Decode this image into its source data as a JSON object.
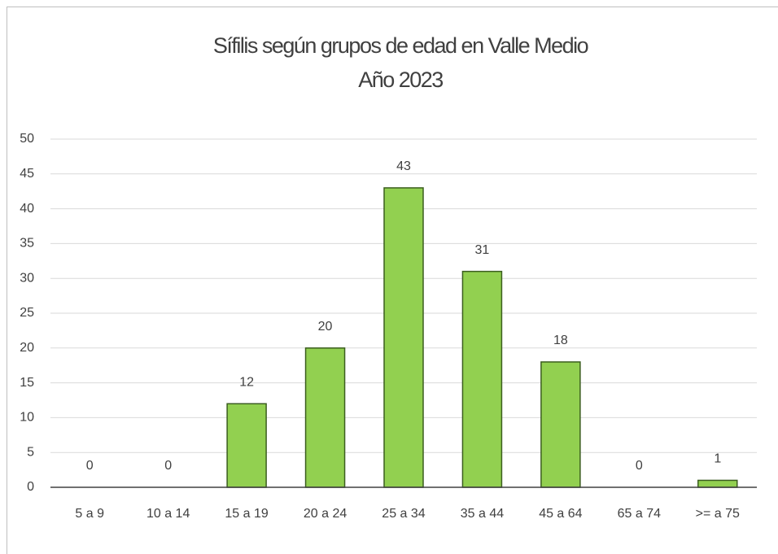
{
  "chart_data": {
    "type": "bar",
    "title": "Sífilis según grupos de edad en Valle Medio",
    "subtitle": "Año 2023",
    "categories": [
      "5 a 9",
      "10 a 14",
      "15 a 19",
      "20 a 24",
      "25 a 34",
      "35 a 44",
      "45 a 64",
      "65 a 74",
      ">= a 75"
    ],
    "values": [
      0,
      0,
      12,
      20,
      43,
      31,
      18,
      0,
      1
    ],
    "color": "#92d050",
    "ylim": [
      0,
      50
    ],
    "yticks": [
      0,
      5,
      10,
      15,
      20,
      25,
      30,
      35,
      40,
      45,
      50
    ],
    "grid": true
  }
}
